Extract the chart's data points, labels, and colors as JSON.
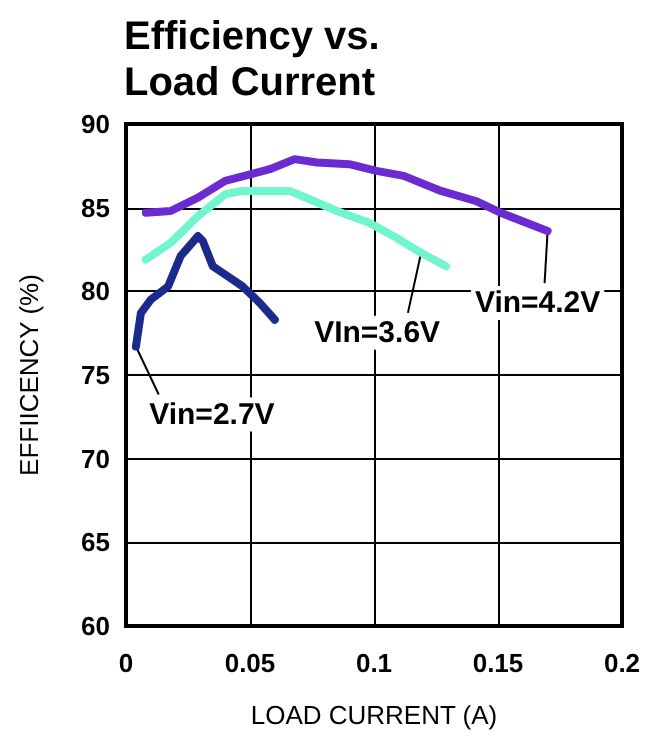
{
  "chart_data": {
    "type": "line",
    "title": "Efficiency vs.\nLoad Current",
    "xlabel": "LOAD CURRENT (A)",
    "ylabel": "EFFIICENCY (%)",
    "xlim": [
      0,
      0.2
    ],
    "xticks": [
      0,
      0.05,
      0.1,
      0.15,
      0.2
    ],
    "ylim": [
      60,
      90
    ],
    "yticks": [
      60,
      65,
      70,
      75,
      80,
      85,
      90
    ],
    "grid": true,
    "legend": false,
    "marker": "none",
    "line_style": "solid",
    "series": [
      {
        "name": "Vin=4.2V",
        "color": "#6a2bd0",
        "x": [
          0.008,
          0.018,
          0.029,
          0.04,
          0.058,
          0.068,
          0.077,
          0.09,
          0.101,
          0.112,
          0.127,
          0.141,
          0.151,
          0.17
        ],
        "values": [
          84.7,
          84.8,
          85.6,
          86.6,
          87.3,
          87.9,
          87.7,
          87.6,
          87.2,
          86.9,
          86.0,
          85.4,
          84.7,
          83.6
        ]
      },
      {
        "name": "VIn=3.6V",
        "color": "#70f5cc",
        "x": [
          0.008,
          0.018,
          0.029,
          0.04,
          0.047,
          0.066,
          0.074,
          0.085,
          0.098,
          0.109,
          0.119,
          0.129
        ],
        "values": [
          81.9,
          82.9,
          84.5,
          85.8,
          86.0,
          86.0,
          85.5,
          84.8,
          84.1,
          83.2,
          82.3,
          81.5
        ]
      },
      {
        "name": "Vin=2.7V",
        "color": "#1c2a8c",
        "x": [
          0.004,
          0.006,
          0.01,
          0.017,
          0.022,
          0.029,
          0.031,
          0.035,
          0.041,
          0.047,
          0.054,
          0.06
        ],
        "values": [
          76.7,
          78.7,
          79.5,
          80.3,
          82.1,
          83.3,
          83.0,
          81.5,
          80.9,
          80.3,
          79.3,
          78.3
        ]
      }
    ]
  }
}
